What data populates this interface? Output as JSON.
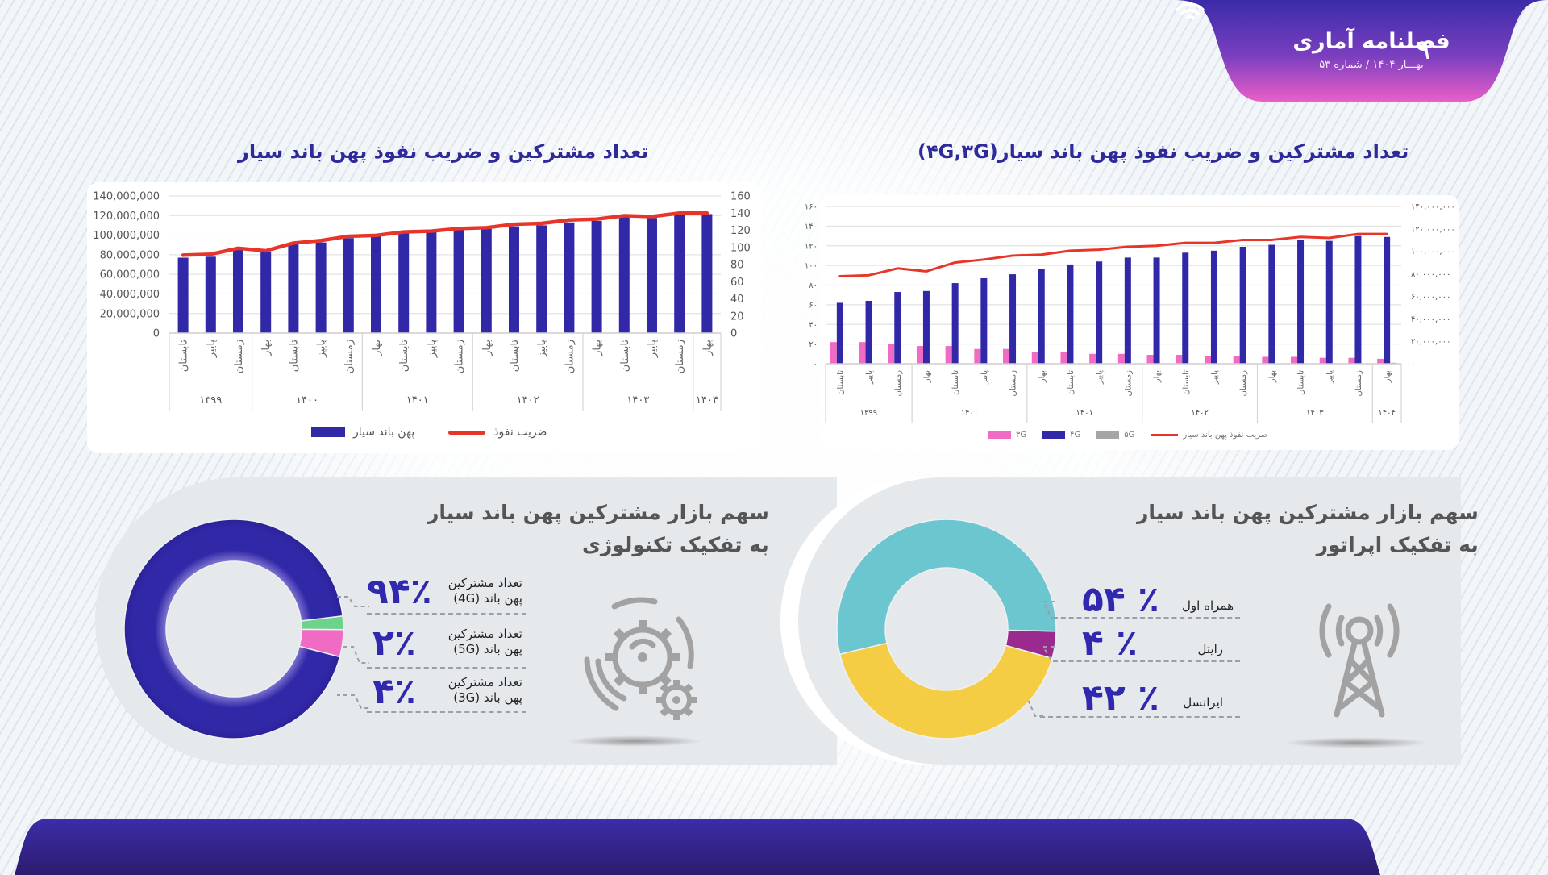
{
  "header": {
    "brand_name": "فصلنامه آماری",
    "issue_line": "بهـــار ۱۴۰۴ /  شماره ۵۳",
    "page_number": "۹"
  },
  "colors": {
    "primary_blue": "#3128a8",
    "penetration_red": "#e8352a",
    "g3_pink": "#ef6bc4",
    "g5_gray": "#a6a6a6",
    "g5_green": "#6dd38a",
    "mci_teal": "#6cc6cf",
    "rightel_purple": "#9b2a8e",
    "irancell_yellow": "#f5cd45"
  },
  "chart_data": [
    {
      "id": "left_total",
      "type": "bar+line",
      "title": "تعداد مشترکین و ضریب نفوذ پهن باند سیار",
      "categories": [
        "تابستان",
        "پاییز",
        "زمستان",
        "بهار",
        "تابستان",
        "پاییز",
        "زمستان",
        "بهار",
        "تابستان",
        "پاییز",
        "زمستان",
        "بهار",
        "تابستان",
        "پاییز",
        "زمستان",
        "بهار",
        "تابستان",
        "پاییز",
        "زمستان",
        "بهار"
      ],
      "year_groups": [
        {
          "label": "۱۳۹۹",
          "count": 3
        },
        {
          "label": "۱۴۰۰",
          "count": 4
        },
        {
          "label": "۱۴۰۱",
          "count": 4
        },
        {
          "label": "۱۴۰۲",
          "count": 4
        },
        {
          "label": "۱۴۰۳",
          "count": 4
        },
        {
          "label": "۱۴۰۴",
          "count": 1
        }
      ],
      "series": [
        {
          "name": "پهن باند سیار",
          "type": "bar",
          "axis": "left",
          "values": [
            77000000,
            78000000,
            85000000,
            83000000,
            91000000,
            92500000,
            97000000,
            99000000,
            102500000,
            103000000,
            106000000,
            106500000,
            109000000,
            110000000,
            113000000,
            114500000,
            118500000,
            117500000,
            121000000,
            121500000
          ]
        },
        {
          "name": "ضریب نفوذ",
          "type": "line",
          "axis": "right",
          "values": [
            91,
            92,
            99,
            96,
            105,
            108,
            113,
            114,
            118,
            119,
            122,
            123,
            127,
            128,
            132,
            133,
            137,
            136,
            140,
            140
          ]
        }
      ],
      "y_left": {
        "ticks": [
          "140,000,000",
          "120,000,000",
          "100,000,000",
          "80,000,000",
          "60,000,000",
          "40,000,000",
          "20,000,000",
          "0"
        ],
        "range": [
          0,
          140000000
        ]
      },
      "y_right": {
        "ticks": [
          "160",
          "140",
          "120",
          "100",
          "80",
          "60",
          "40",
          "20",
          "0"
        ],
        "range": [
          0,
          160
        ]
      },
      "legend": [
        "ضریب نفوذ",
        "پهن باند سیار"
      ],
      "legend_position": "bottom",
      "grid": true
    },
    {
      "id": "right_by_tech",
      "type": "bar+line",
      "title": "تعداد مشترکین و ضریب نفوذ پهن باند سیار(۴G,۳G)",
      "categories": [
        "تابستان",
        "پاییز",
        "زمستان",
        "بهار",
        "تابستان",
        "پاییز",
        "زمستان",
        "بهار",
        "تابستان",
        "پاییز",
        "زمستان",
        "بهار",
        "تابستان",
        "پاییز",
        "زمستان",
        "بهار",
        "تابستان",
        "پاییز",
        "زمستان",
        "بهار"
      ],
      "year_groups": [
        {
          "label": "۱۳۹۹",
          "count": 3
        },
        {
          "label": "۱۴۰۰",
          "count": 4
        },
        {
          "label": "۱۴۰۱",
          "count": 4
        },
        {
          "label": "۱۴۰۲",
          "count": 4
        },
        {
          "label": "۱۴۰۳",
          "count": 4
        },
        {
          "label": "۱۴۰۴",
          "count": 1
        }
      ],
      "series": [
        {
          "name": "۳G",
          "type": "bar",
          "axis": "left",
          "values": [
            22,
            22,
            20,
            18,
            18,
            15,
            15,
            12,
            12,
            10,
            10,
            9,
            9,
            8,
            8,
            7,
            7,
            6,
            6,
            5
          ]
        },
        {
          "name": "۴G",
          "type": "bar",
          "axis": "left",
          "values": [
            62,
            64,
            73,
            74,
            82,
            87,
            91,
            96,
            101,
            104,
            108,
            108,
            113,
            115,
            119,
            121,
            126,
            125,
            130,
            129
          ]
        },
        {
          "name": "۵G",
          "type": "bar",
          "axis": "left",
          "values": [
            0,
            0,
            0,
            0,
            0,
            0,
            0,
            0,
            0,
            0,
            0,
            0,
            0,
            0,
            0,
            0,
            0,
            0,
            0,
            1
          ]
        },
        {
          "name": "ضریب نفوذ پهن باند سیار",
          "type": "line",
          "axis": "left",
          "values": [
            89,
            90,
            97,
            94,
            103,
            106,
            110,
            111,
            115,
            116,
            119,
            120,
            123,
            123,
            126,
            126,
            129,
            128,
            132,
            132
          ]
        }
      ],
      "y_left": {
        "ticks": [
          "۱۶۰",
          "۱۴۰",
          "۱۲۰",
          "۱۰۰",
          "۸۰",
          "۶۰",
          "۴۰",
          "۲۰",
          "۰"
        ],
        "range": [
          0,
          160
        ]
      },
      "y_right": {
        "ticks": [
          "۱۴۰,۰۰۰,۰۰۰",
          "۱۲۰,۰۰۰,۰۰۰",
          "۱۰۰,۰۰۰,۰۰۰",
          "۸۰,۰۰۰,۰۰۰",
          "۶۰,۰۰۰,۰۰۰",
          "۴۰,۰۰۰,۰۰۰",
          "۲۰,۰۰۰,۰۰۰",
          "۰"
        ],
        "range": [
          0,
          140000000
        ]
      },
      "legend": [
        "۳G",
        "۴G",
        "۵G",
        "ضریب نفوذ پهن باند سیار"
      ],
      "legend_position": "bottom",
      "grid": true
    },
    {
      "id": "donut_technology",
      "type": "pie",
      "title": "سهم بازار مشترکین پهن باند سیار به تفکیک تکنولوژی",
      "categories": [
        "4G",
        "5G",
        "3G"
      ],
      "values": [
        94,
        2,
        4
      ]
    },
    {
      "id": "donut_operator",
      "type": "pie",
      "title": "سهم بازار مشترکین پهن باند سیار به تفکیک اپراتور",
      "categories": [
        "همراه اول",
        "رایتل",
        "ایرانسل"
      ],
      "values": [
        54,
        4,
        42
      ]
    }
  ],
  "left_chart": {
    "title": "تعداد مشترکین و ضریب نفوذ پهن باند سیار",
    "legend_line": "ضریب نفوذ",
    "legend_bar": "پهن باند سیار"
  },
  "right_chart": {
    "title": "تعداد مشترکین و ضریب نفوذ پهن باند سیار(۴G,۳G)",
    "legend": {
      "g3": "۳G",
      "g4": "۴G",
      "g5": "۵G",
      "line": "ضریب نفوذ پهن باند سیار"
    }
  },
  "tech_panel": {
    "title_line1": "سهم بازار مشترکین پهن باند سیار",
    "title_line2": "به تفکیک تکنولوژی",
    "items": [
      {
        "pct": "۹۴٪",
        "label_line1": "تعداد مشترکین",
        "label_line2": "پهن باند (4G)"
      },
      {
        "pct": "۲٪",
        "label_line1": "تعداد مشترکین",
        "label_line2": "پهن باند (5G)"
      },
      {
        "pct": "۴٪",
        "label_line1": "تعداد مشترکین",
        "label_line2": "پهن باند (3G)"
      }
    ],
    "icon": "gears-icon"
  },
  "operator_panel": {
    "title_line1": "سهم بازار مشترکین پهن باند سیار",
    "title_line2": "به تفکیک اپراتور",
    "items": [
      {
        "pct": "۵۴ ٪",
        "label": "همراه اول"
      },
      {
        "pct": "۴ ٪",
        "label": "رایتل"
      },
      {
        "pct": "۴۲ ٪",
        "label": "ایرانسل"
      }
    ],
    "icon": "cell-tower-icon"
  }
}
